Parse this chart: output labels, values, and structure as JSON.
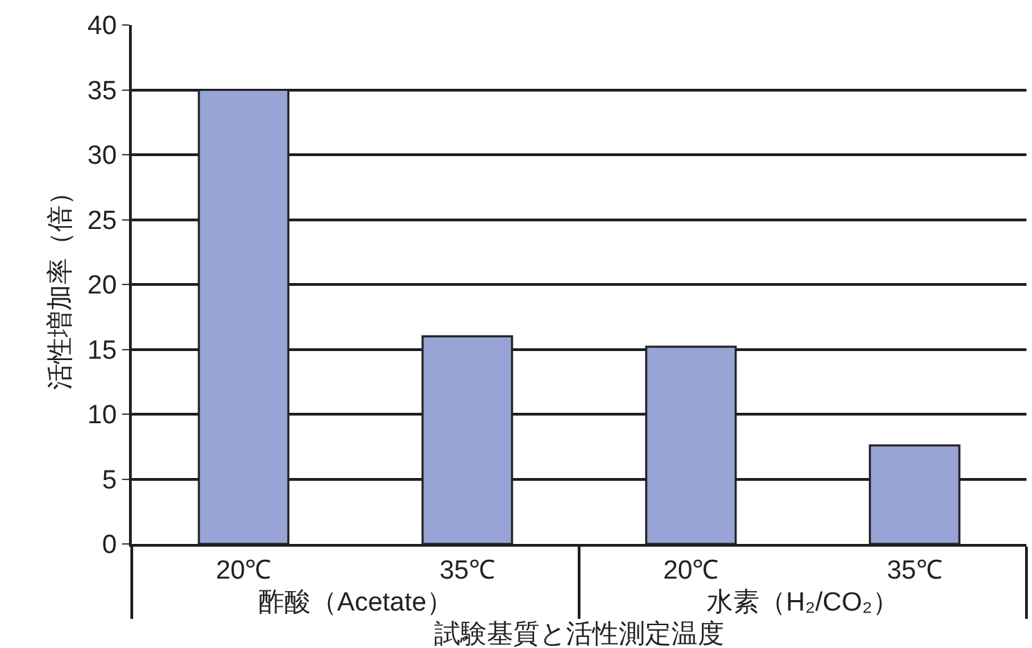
{
  "chart_data": {
    "type": "bar",
    "xlabel": "試験基質と活性測定温度",
    "ylabel": "活性増加率（倍）",
    "categories": [
      "20℃",
      "35℃",
      "20℃",
      "35℃"
    ],
    "values": [
      35,
      16,
      15.2,
      7.6
    ],
    "color": "#97a4d5",
    "annotations": [
      "酢酸（Acetate）",
      "水素（H₂/CO₂）"
    ],
    "ylim": [
      0,
      40
    ],
    "yticks": [
      0,
      5,
      10,
      15,
      20,
      25,
      30,
      35,
      40
    ],
    "grid": "y",
    "legend": false
  }
}
